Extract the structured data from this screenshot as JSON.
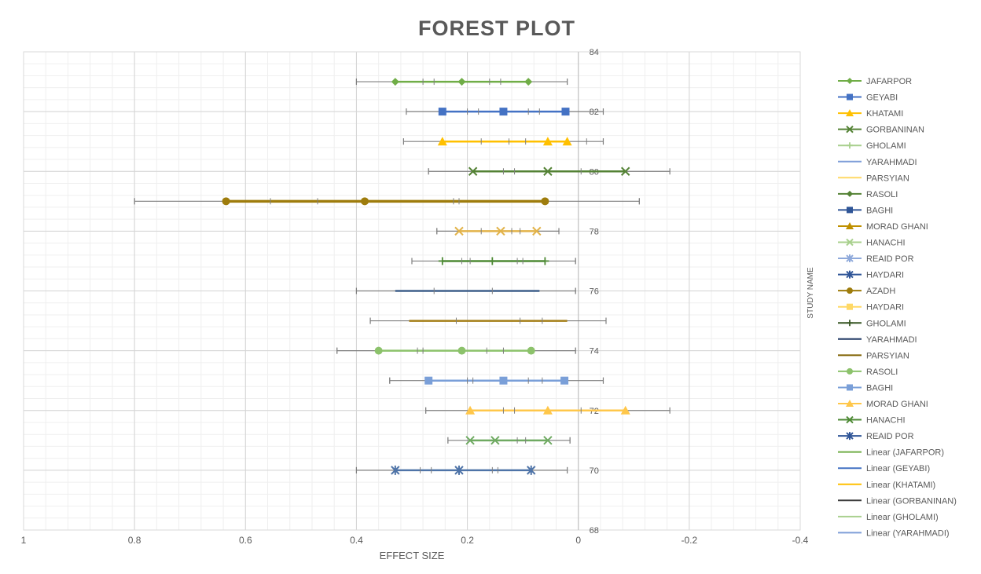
{
  "chart_data": {
    "type": "scatter",
    "title": "FOREST PLOT",
    "xlabel": "EFFECT SIZE",
    "ylabel": "STUDY NAME",
    "xlim": [
      1,
      -0.4
    ],
    "ylim": [
      68,
      84
    ],
    "x_ticks": [
      "1",
      "0.8",
      "0.6",
      "0.4",
      "0.2",
      "0",
      "-0.2",
      "-0.4"
    ],
    "x_tick_values": [
      1,
      0.8,
      0.6,
      0.4,
      0.2,
      0,
      -0.2,
      -0.4
    ],
    "y_ticks": [
      "84",
      "82",
      "80",
      "78",
      "76",
      "74",
      "72",
      "70",
      "68"
    ],
    "y_tick_values": [
      84,
      82,
      80,
      78,
      76,
      74,
      72,
      70,
      68
    ],
    "grid": true,
    "legend_position": "right",
    "rows": [
      {
        "y": 83,
        "color": "#70AD47",
        "marker": "diamond",
        "line": [
          0.33,
          0.09
        ],
        "ci": [
          0.4,
          0.02
        ],
        "points": [
          0.33,
          0.21,
          0.09
        ],
        "ticks": [
          0.4,
          0.28,
          0.26,
          0.16,
          0.14,
          0.02
        ]
      },
      {
        "y": 82,
        "color": "#4472C4",
        "marker": "square",
        "line": [
          0.245,
          0.023
        ],
        "ci": [
          0.31,
          -0.045
        ],
        "points": [
          0.245,
          0.135,
          0.023
        ],
        "ticks": [
          0.31,
          0.2,
          0.18,
          0.09,
          0.07,
          -0.045
        ]
      },
      {
        "y": 81,
        "color": "#FFC000",
        "marker": "triangle",
        "line": [
          0.245,
          0.02
        ],
        "ci": [
          0.315,
          -0.045
        ],
        "points": [
          0.245,
          0.055,
          0.02
        ],
        "ticks": [
          0.315,
          0.175,
          0.125,
          0.095,
          -0.015,
          -0.045
        ]
      },
      {
        "y": 80,
        "color": "#548235",
        "marker": "x",
        "line": [
          0.19,
          -0.085
        ],
        "ci": [
          0.27,
          -0.165
        ],
        "points": [
          0.19,
          0.055,
          -0.085
        ],
        "ticks": [
          0.27,
          0.135,
          0.115,
          -0.005
        ]
      },
      {
        "y": 79,
        "color": "#9E7C0C",
        "marker": "circle",
        "lineWidth": 3.5,
        "line": [
          0.635,
          0.06
        ],
        "ci": [
          0.8,
          -0.11
        ],
        "points": [
          0.635,
          0.385,
          0.06
        ],
        "ticks": [
          0.8,
          0.555,
          0.47,
          0.225,
          0.215,
          -0.11
        ]
      },
      {
        "y": 78,
        "color": "#E2B34A",
        "marker": "x",
        "line": [
          0.215,
          0.075
        ],
        "ci": [
          0.255,
          0.035
        ],
        "points": [
          0.215,
          0.14,
          0.075
        ],
        "ticks": [
          0.255,
          0.175,
          0.12,
          0.105
        ]
      },
      {
        "y": 77,
        "color": "#4E8A35",
        "marker": "plus",
        "line": [
          0.245,
          0.06
        ],
        "ci": [
          0.3,
          0.005
        ],
        "points": [
          0.245,
          0.155,
          0.06
        ],
        "ticks": [
          0.3,
          0.21,
          0.195,
          0.11,
          0.1,
          0.005
        ]
      },
      {
        "y": 76,
        "color": "#3E5F8A",
        "marker": "none",
        "line": [
          0.33,
          0.07
        ],
        "ci": [
          0.4,
          0.005
        ],
        "points": [],
        "ticks": [
          0.4,
          0.26,
          0.155,
          0.005
        ]
      },
      {
        "y": 75,
        "color": "#A57F18",
        "marker": "none",
        "line": [
          0.305,
          0.02
        ],
        "ci": [
          0.375,
          -0.05
        ],
        "points": [],
        "ticks": [
          0.375,
          0.22,
          0.105,
          0.065,
          -0.05
        ]
      },
      {
        "y": 74,
        "color": "#8CC26B",
        "marker": "circle",
        "line": [
          0.36,
          0.085
        ],
        "ci": [
          0.435,
          0.005
        ],
        "points": [
          0.36,
          0.21,
          0.085
        ],
        "ticks": [
          0.435,
          0.29,
          0.28,
          0.165,
          0.135,
          0.005
        ]
      },
      {
        "y": 73,
        "color": "#7A9FD8",
        "marker": "square",
        "line": [
          0.27,
          0.025
        ],
        "ci": [
          0.34,
          -0.045
        ],
        "points": [
          0.27,
          0.135,
          0.025
        ],
        "ticks": [
          0.34,
          0.2,
          0.19,
          0.09,
          0.065,
          -0.045
        ]
      },
      {
        "y": 72,
        "color": "#FFC74A",
        "marker": "triangle",
        "line": [
          0.195,
          -0.085
        ],
        "ci": [
          0.275,
          -0.165
        ],
        "points": [
          0.195,
          0.055,
          -0.085
        ],
        "ticks": [
          0.275,
          0.135,
          0.115,
          -0.005
        ]
      },
      {
        "y": 71,
        "color": "#6FAA62",
        "marker": "x",
        "line": [
          0.195,
          0.055
        ],
        "ci": [
          0.235,
          0.015
        ],
        "points": [
          0.195,
          0.15,
          0.055
        ],
        "ticks": [
          0.235,
          0.11,
          0.095,
          0.015
        ]
      },
      {
        "y": 70,
        "color": "#4F74A8",
        "marker": "star",
        "line": [
          0.33,
          0.085
        ],
        "ci": [
          0.4,
          0.02
        ],
        "points": [
          0.33,
          0.215,
          0.085
        ],
        "ticks": [
          0.4,
          0.285,
          0.265,
          0.155,
          0.145,
          0.02
        ]
      }
    ],
    "legend": [
      {
        "name": "JAFARPOR",
        "color": "#70AD47",
        "marker": "diamond"
      },
      {
        "name": "GEYABI",
        "color": "#4472C4",
        "marker": "square"
      },
      {
        "name": "KHATAMI",
        "color": "#FFC000",
        "marker": "triangle"
      },
      {
        "name": "GORBANINAN",
        "color": "#548235",
        "marker": "x"
      },
      {
        "name": "GHOLAMI",
        "color": "#A9D08E",
        "marker": "plus"
      },
      {
        "name": "YARAHMADI",
        "color": "#7E9ED8",
        "marker": "none"
      },
      {
        "name": "PARSYIAN",
        "color": "#FFD966",
        "marker": "none"
      },
      {
        "name": "RASOLI",
        "color": "#548235",
        "marker": "diamond"
      },
      {
        "name": "BAGHI",
        "color": "#2F5597",
        "marker": "square"
      },
      {
        "name": "MORAD GHANI",
        "color": "#BF9000",
        "marker": "triangle"
      },
      {
        "name": "HANACHI",
        "color": "#A9D08E",
        "marker": "x"
      },
      {
        "name": "REAID POR",
        "color": "#8EA9DB",
        "marker": "star"
      },
      {
        "name": "HAYDARI",
        "color": "#2F5597",
        "marker": "star"
      },
      {
        "name": "AZADH",
        "color": "#9E7C0C",
        "marker": "circle"
      },
      {
        "name": "HAYDARI",
        "color": "#FFD966",
        "marker": "square"
      },
      {
        "name": "GHOLAMI",
        "color": "#375623",
        "marker": "plus"
      },
      {
        "name": "YARAHMADI",
        "color": "#203864",
        "marker": "none"
      },
      {
        "name": "PARSYIAN",
        "color": "#7F6000",
        "marker": "none"
      },
      {
        "name": "RASOLI",
        "color": "#8CC26B",
        "marker": "circle"
      },
      {
        "name": "BAGHI",
        "color": "#7A9FD8",
        "marker": "square"
      },
      {
        "name": "MORAD GHANI",
        "color": "#FFC74A",
        "marker": "triangle"
      },
      {
        "name": "HANACHI",
        "color": "#4E8A35",
        "marker": "x"
      },
      {
        "name": "REAID POR",
        "color": "#2F5597",
        "marker": "star"
      },
      {
        "name": "Linear (JAFARPOR)",
        "color": "#70AD47",
        "marker": "none"
      },
      {
        "name": "Linear (GEYABI)",
        "color": "#4472C4",
        "marker": "none"
      },
      {
        "name": "Linear (KHATAMI)",
        "color": "#FFC000",
        "marker": "none"
      },
      {
        "name": "Linear (GORBANINAN)",
        "color": "#3B3B3B",
        "marker": "none"
      },
      {
        "name": "Linear (GHOLAMI)",
        "color": "#A9D08E",
        "marker": "none"
      },
      {
        "name": "Linear (YARAHMADI)",
        "color": "#7E9ED8",
        "marker": "none"
      }
    ]
  }
}
